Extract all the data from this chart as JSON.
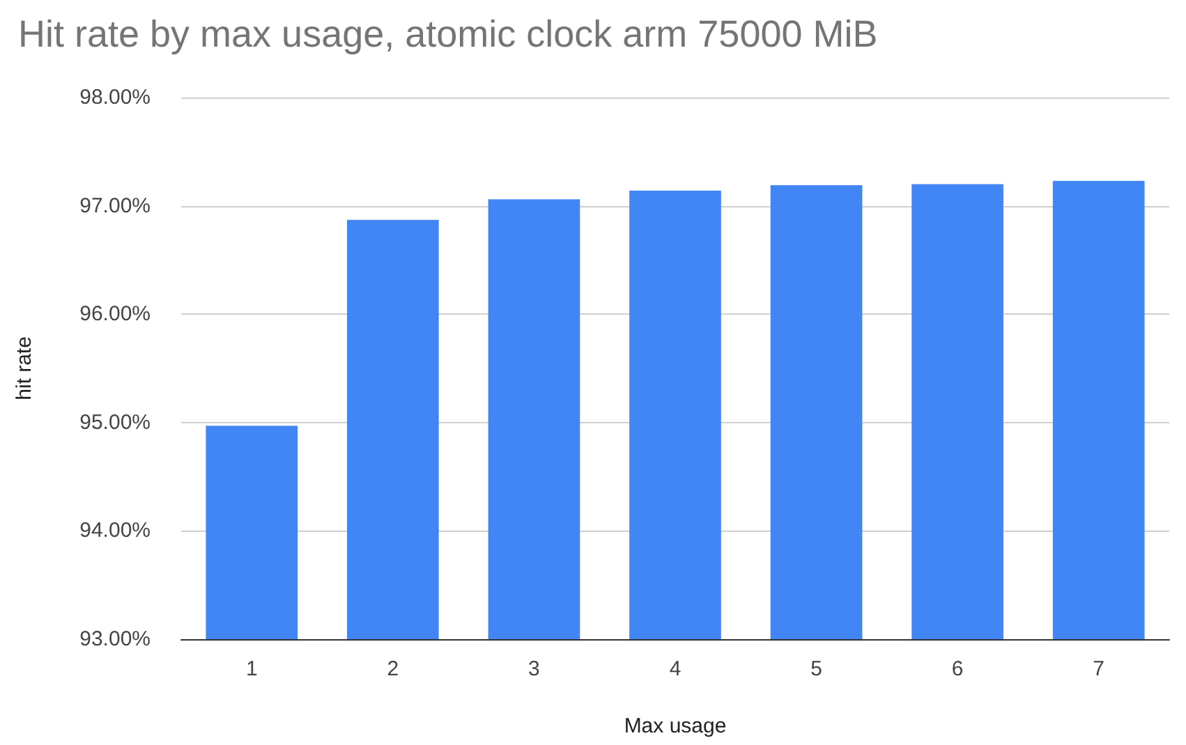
{
  "chart_data": {
    "type": "bar",
    "title": "Hit rate by max usage, atomic clock arm 75000 MiB",
    "xlabel": "Max usage",
    "ylabel": "hit rate",
    "categories": [
      "1",
      "2",
      "3",
      "4",
      "5",
      "6",
      "7"
    ],
    "values": [
      94.97,
      96.87,
      97.06,
      97.14,
      97.19,
      97.2,
      97.23
    ],
    "color": "#4285f4",
    "ylim": [
      93,
      98
    ],
    "yticks": [
      {
        "value": 93,
        "label": "93.00%"
      },
      {
        "value": 94,
        "label": "94.00%"
      },
      {
        "value": 95,
        "label": "95.00%"
      },
      {
        "value": 96,
        "label": "96.00%"
      },
      {
        "value": 97,
        "label": "97.00%"
      },
      {
        "value": 98,
        "label": "98.00%"
      }
    ],
    "grid": "y"
  }
}
